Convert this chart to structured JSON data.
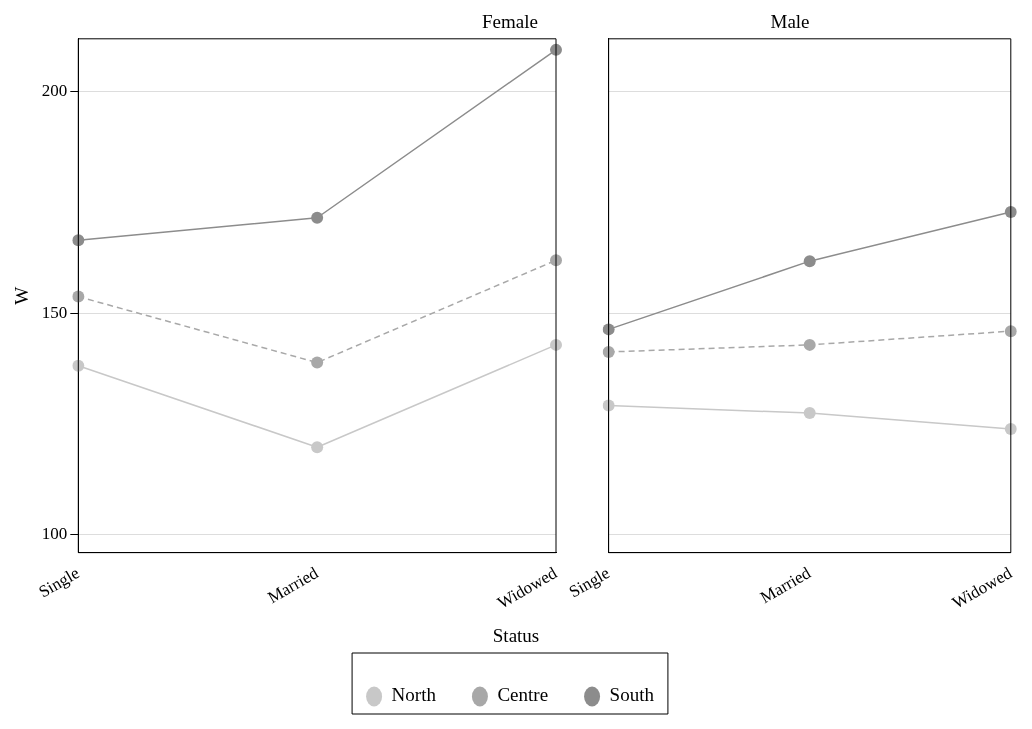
{
  "chart_data": [
    {
      "type": "line",
      "title": "Female",
      "xlabel": "Status",
      "ylabel": "W",
      "categories": [
        "Single",
        "Married",
        "Widowed"
      ],
      "ylim": [
        96,
        212
      ],
      "yticks": [
        100,
        150,
        200
      ],
      "grid": "y",
      "marker": "circle",
      "legend": "bottom",
      "series": [
        {
          "name": "North",
          "color": "#c8c8c8",
          "line_style": "solid",
          "values": [
            138.2,
            119.8,
            142.9
          ]
        },
        {
          "name": "Centre",
          "color": "#a8a8a8",
          "line_style": "dashed",
          "values": [
            153.8,
            138.9,
            162.0
          ]
        },
        {
          "name": "South",
          "color": "#8c8c8c",
          "line_style": "solid",
          "values": [
            166.5,
            171.6,
            209.5
          ]
        }
      ]
    },
    {
      "type": "line",
      "title": "Male",
      "categories": [
        "Single",
        "Married",
        "Widowed"
      ],
      "ylim": [
        96,
        212
      ],
      "yticks": [
        100,
        150,
        200
      ],
      "grid": "y",
      "marker": "circle",
      "tick_labels": "x",
      "series": [
        {
          "color": "#c8c8c8",
          "line_style": "solid",
          "values": [
            129.2,
            127.5,
            123.9
          ]
        },
        {
          "color": "#a8a8a8",
          "line_style": "dashed",
          "values": [
            141.3,
            142.9,
            146.0
          ]
        },
        {
          "color": "#8c8c8c",
          "line_style": "solid",
          "values": [
            146.4,
            161.8,
            172.9
          ]
        }
      ]
    }
  ]
}
